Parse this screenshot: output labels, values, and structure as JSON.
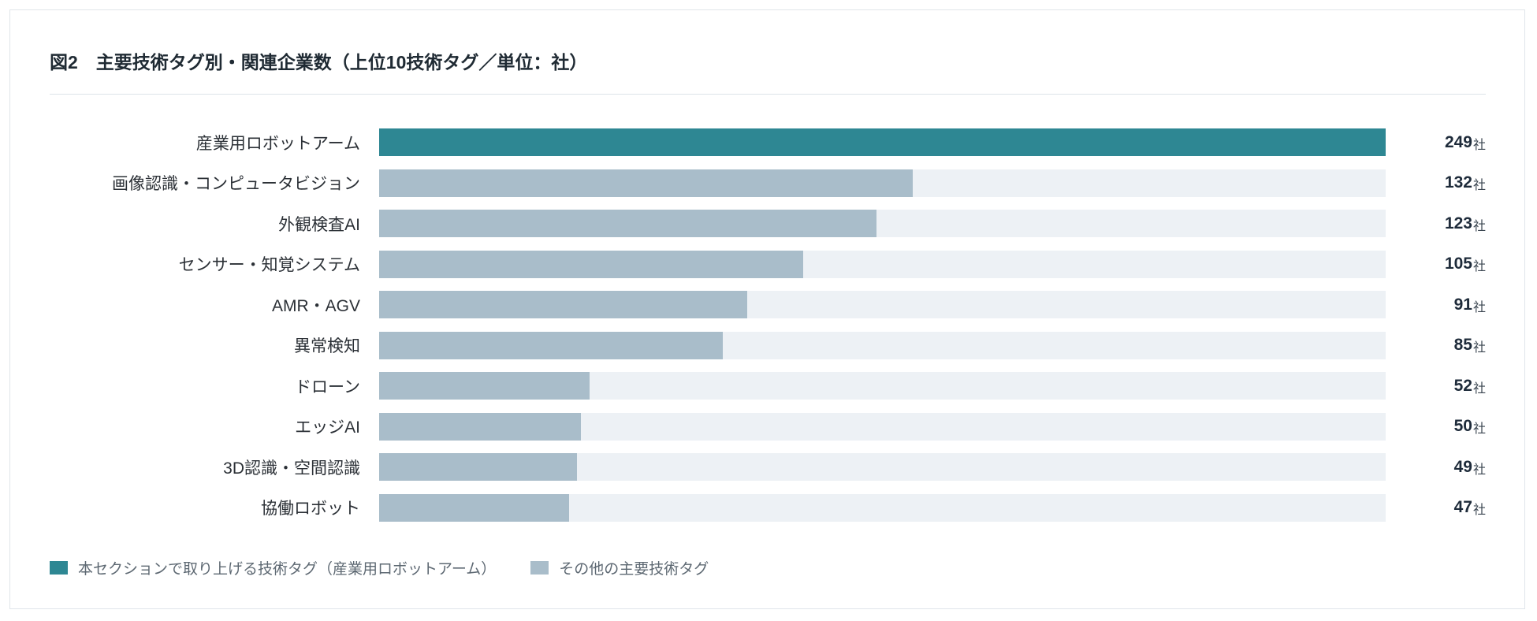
{
  "chart_data": {
    "type": "bar",
    "orientation": "horizontal",
    "title": "図2　主要技術タグ別・関連企業数（上位10技術タグ／単位：社）",
    "categories": [
      "産業用ロボットアーム",
      "画像認識・コンピュータビジョン",
      "外観検査AI",
      "センサー・知覚システム",
      "AMR・AGV",
      "異常検知",
      "ドローン",
      "エッジAI",
      "3D認識・空間認識",
      "協働ロボット"
    ],
    "values": [
      249,
      132,
      123,
      105,
      91,
      85,
      52,
      50,
      49,
      47
    ],
    "unit": "社",
    "bar_colors": [
      "#2E8793",
      "#A9BDCA",
      "#A9BDCA",
      "#A9BDCA",
      "#A9BDCA",
      "#A9BDCA",
      "#A9BDCA",
      "#A9BDCA",
      "#A9BDCA",
      "#A9BDCA"
    ],
    "track_color": "#EDF1F5",
    "xlim": [
      0,
      249
    ],
    "grid": false,
    "legend_position": "bottom-left",
    "legend": [
      {
        "label": "本セクションで取り上げる技術タグ（産業用ロボットアーム）",
        "color": "#2E8793"
      },
      {
        "label": "その他の主要技術タグ",
        "color": "#A9BDCA"
      }
    ]
  }
}
